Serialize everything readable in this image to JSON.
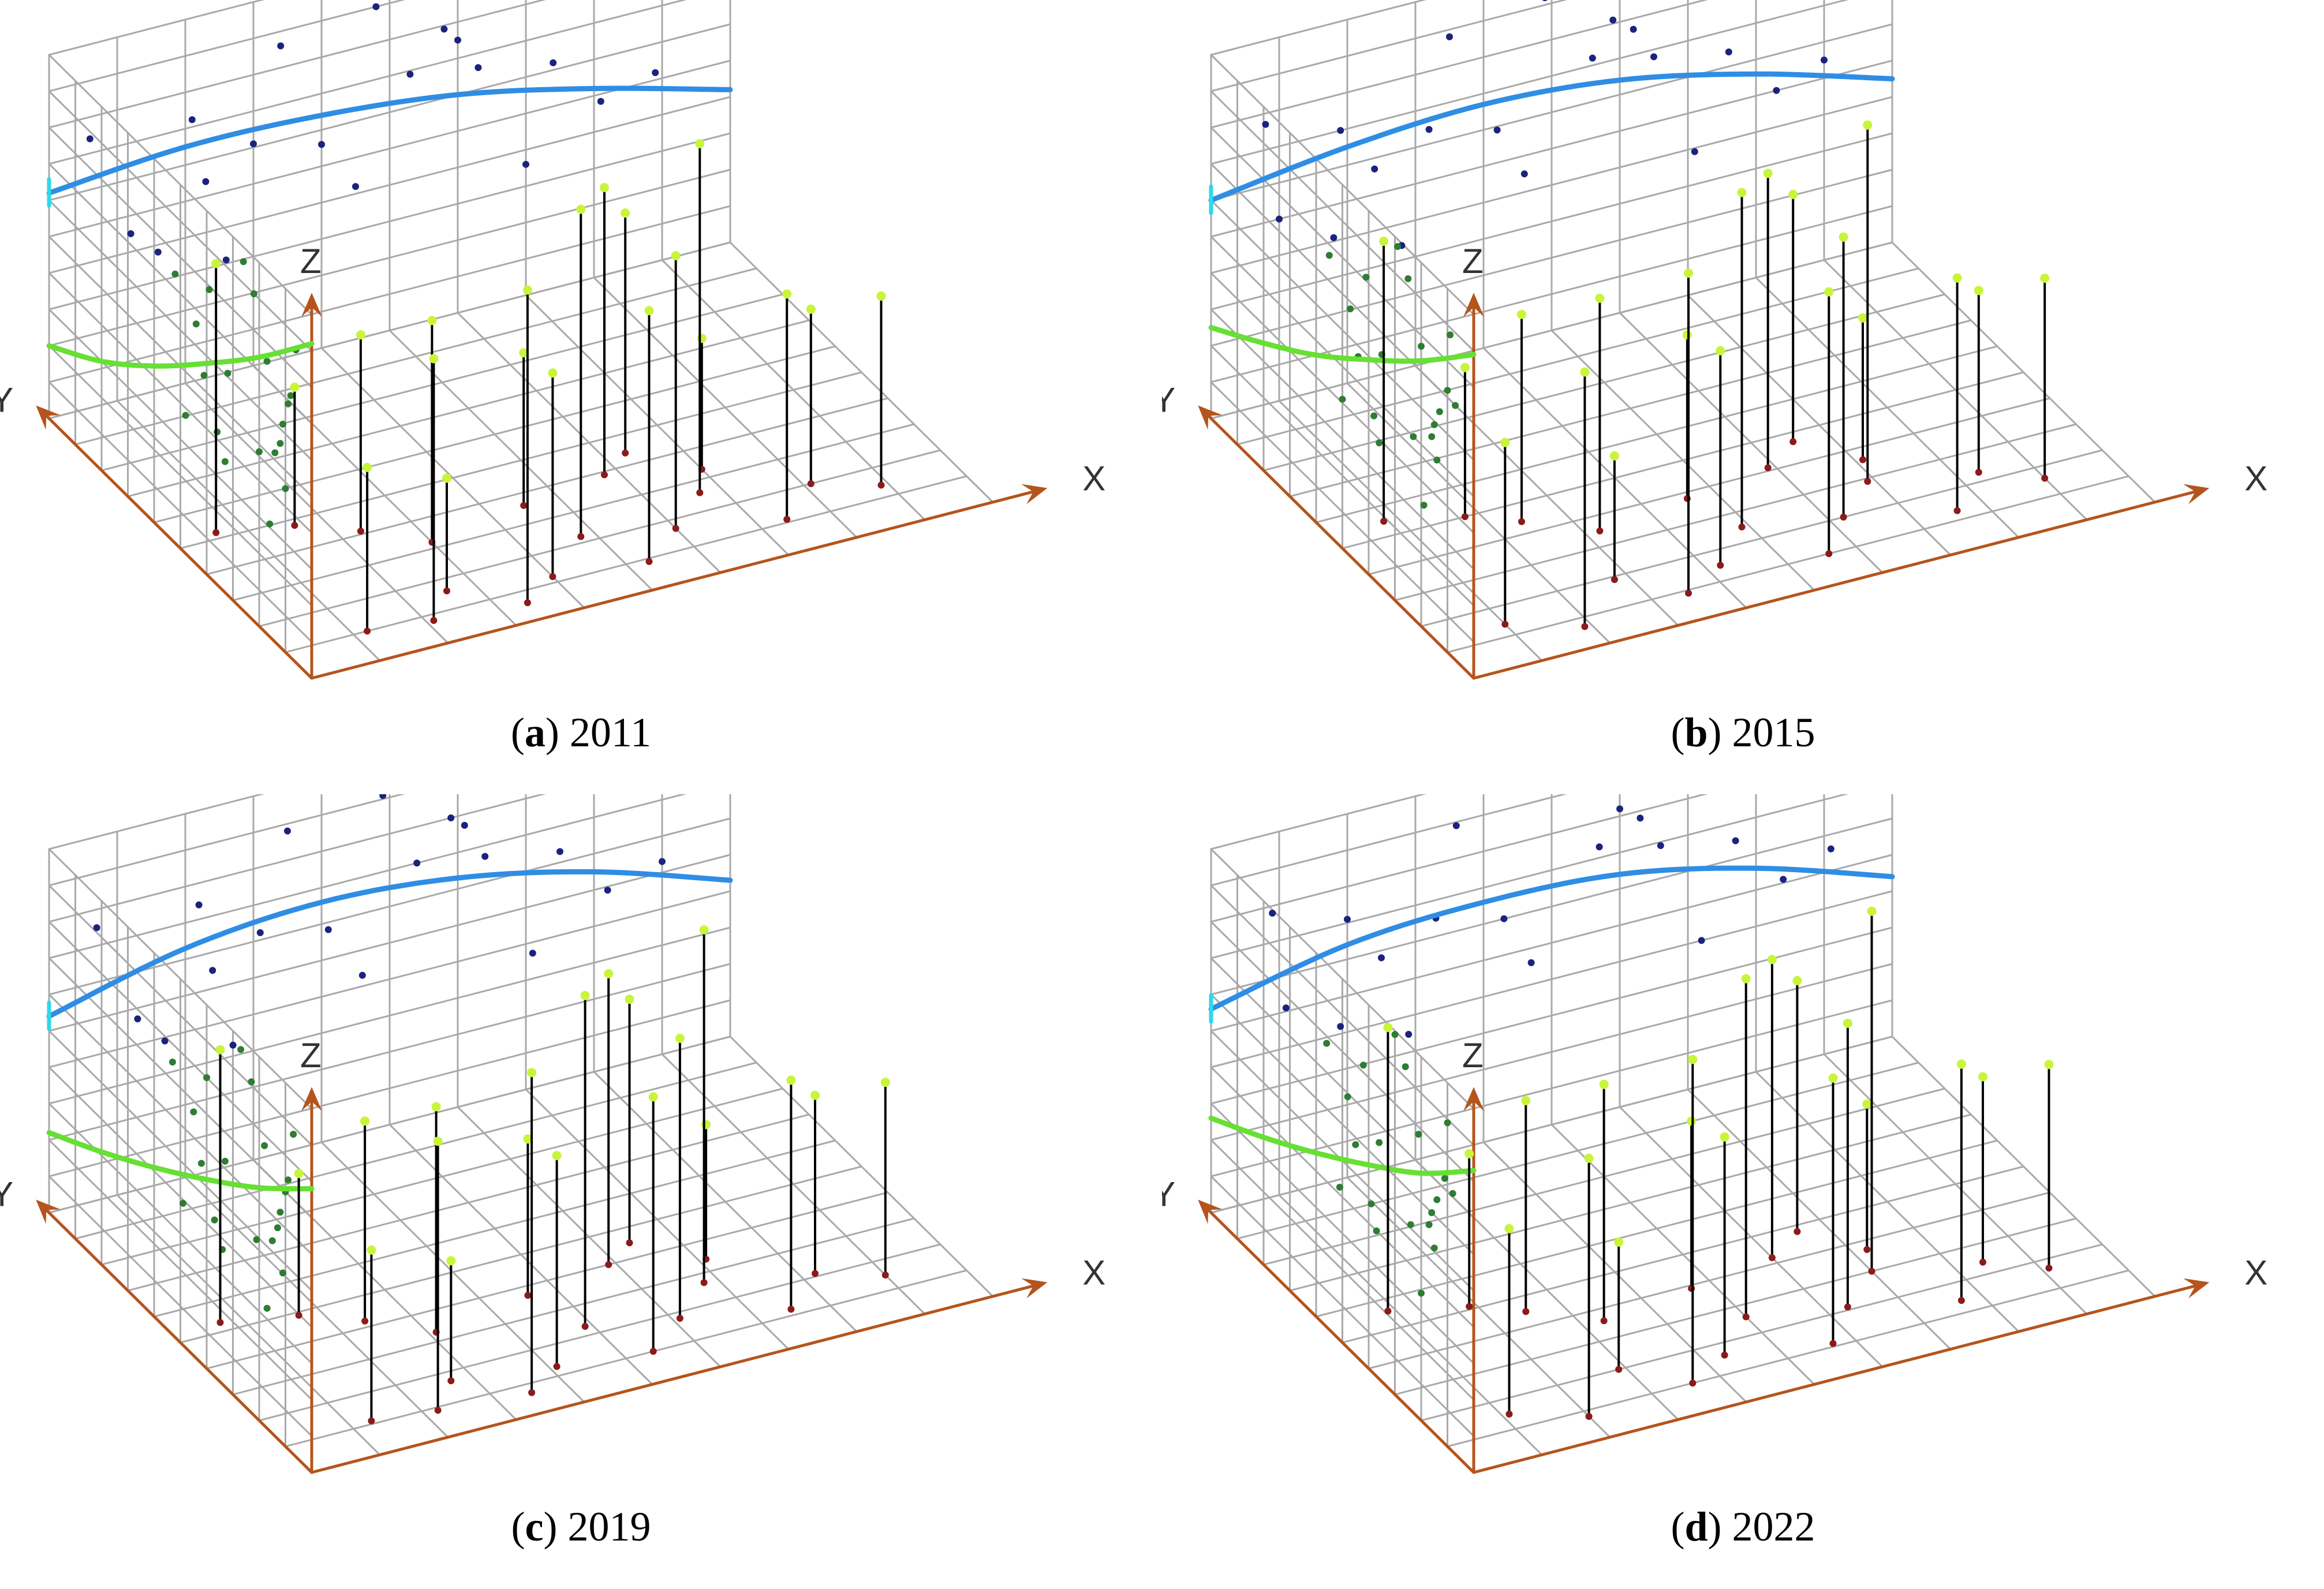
{
  "figure": {
    "panels": [
      {
        "id": "a",
        "letter": "a",
        "year": "2011"
      },
      {
        "id": "b",
        "letter": "b",
        "year": "2015"
      },
      {
        "id": "c",
        "letter": "c",
        "year": "2019"
      },
      {
        "id": "d",
        "letter": "d",
        "year": "2022"
      }
    ],
    "axis_letters": {
      "x": "X",
      "y": "Y",
      "z": "Z"
    }
  },
  "colors": {
    "grid": "#a9a9a9",
    "axis": "#b5541c",
    "projection_xz": "#1a237e",
    "projection_yz": "#2e7d32",
    "data_top": "#c8f53a",
    "data_base": "#8b1a1a",
    "stem": "#000000",
    "trend_yz": "#66e033",
    "trend_xz": "#2f8de4",
    "trend_start": "#2ed8e8"
  },
  "chart_data": [
    {
      "type": "scatter",
      "subtype": "3d-scatter-with-trend-projections",
      "title": "",
      "xlabel": "X",
      "ylabel": "Y",
      "zlabel": "Z",
      "xlim": [
        0,
        10
      ],
      "ylim": [
        0,
        10
      ],
      "zlim": [
        0,
        10
      ],
      "grid": true,
      "caption": "(a) 2011",
      "points": [
        {
          "x": 1.2,
          "y": 1.0,
          "z": 4.5
        },
        {
          "x": 2.1,
          "y": 0.8,
          "z": 7.2
        },
        {
          "x": 2.6,
          "y": 1.6,
          "z": 3.1
        },
        {
          "x": 3.4,
          "y": 0.6,
          "z": 8.6
        },
        {
          "x": 4.0,
          "y": 1.2,
          "z": 5.6
        },
        {
          "x": 4.8,
          "y": 2.2,
          "z": 9.0
        },
        {
          "x": 5.3,
          "y": 0.9,
          "z": 6.9
        },
        {
          "x": 6.0,
          "y": 1.7,
          "z": 7.5
        },
        {
          "x": 6.7,
          "y": 2.6,
          "z": 9.6
        },
        {
          "x": 7.4,
          "y": 1.1,
          "z": 6.2
        },
        {
          "x": 8.1,
          "y": 2.0,
          "z": 4.8
        },
        {
          "x": 8.9,
          "y": 1.4,
          "z": 5.2
        },
        {
          "x": 3.0,
          "y": 3.2,
          "z": 6.1
        },
        {
          "x": 4.5,
          "y": 3.6,
          "z": 4.2
        },
        {
          "x": 5.8,
          "y": 3.9,
          "z": 7.9
        },
        {
          "x": 7.0,
          "y": 3.3,
          "z": 3.6
        },
        {
          "x": 2.3,
          "y": 4.1,
          "z": 5.4
        },
        {
          "x": 6.3,
          "y": 4.4,
          "z": 6.6
        },
        {
          "x": 0.6,
          "y": 5.2,
          "z": 7.4
        },
        {
          "x": 1.6,
          "y": 4.8,
          "z": 3.8
        }
      ],
      "trend_yz": [
        [
          10,
          2.0
        ],
        [
          8,
          3.0
        ],
        [
          6,
          4.3
        ],
        [
          4,
          5.8
        ],
        [
          2,
          7.4
        ],
        [
          0,
          9.2
        ]
      ],
      "trend_xz": [
        [
          0,
          6.2
        ],
        [
          2,
          6.5
        ],
        [
          4,
          6.4
        ],
        [
          6,
          6.0
        ],
        [
          8,
          5.2
        ],
        [
          10,
          4.2
        ]
      ]
    },
    {
      "type": "scatter",
      "subtype": "3d-scatter-with-trend-projections",
      "title": "",
      "xlabel": "X",
      "ylabel": "Y",
      "zlabel": "Z",
      "xlim": [
        0,
        10
      ],
      "ylim": [
        0,
        10
      ],
      "zlim": [
        0,
        10
      ],
      "grid": true,
      "caption": "(b) 2015",
      "points": [
        {
          "x": 1.0,
          "y": 1.4,
          "z": 5.0
        },
        {
          "x": 1.9,
          "y": 0.7,
          "z": 7.0
        },
        {
          "x": 2.8,
          "y": 1.9,
          "z": 3.4
        },
        {
          "x": 3.5,
          "y": 0.9,
          "z": 8.8
        },
        {
          "x": 4.2,
          "y": 1.5,
          "z": 5.9
        },
        {
          "x": 4.9,
          "y": 2.5,
          "z": 9.2
        },
        {
          "x": 5.6,
          "y": 1.0,
          "z": 7.2
        },
        {
          "x": 6.2,
          "y": 2.0,
          "z": 7.7
        },
        {
          "x": 6.9,
          "y": 2.9,
          "z": 9.8
        },
        {
          "x": 7.6,
          "y": 1.3,
          "z": 6.4
        },
        {
          "x": 8.3,
          "y": 2.3,
          "z": 5.0
        },
        {
          "x": 9.0,
          "y": 1.6,
          "z": 5.5
        },
        {
          "x": 3.2,
          "y": 3.5,
          "z": 6.4
        },
        {
          "x": 4.6,
          "y": 3.8,
          "z": 4.5
        },
        {
          "x": 5.9,
          "y": 4.1,
          "z": 8.1
        },
        {
          "x": 7.1,
          "y": 3.6,
          "z": 3.9
        },
        {
          "x": 2.4,
          "y": 4.4,
          "z": 5.7
        },
        {
          "x": 6.5,
          "y": 4.7,
          "z": 6.8
        },
        {
          "x": 0.8,
          "y": 5.5,
          "z": 7.7
        },
        {
          "x": 1.8,
          "y": 5.0,
          "z": 4.1
        }
      ],
      "trend_yz": [
        [
          10,
          2.5
        ],
        [
          8,
          3.5
        ],
        [
          6,
          4.6
        ],
        [
          4,
          5.9
        ],
        [
          2,
          7.3
        ],
        [
          0,
          8.9
        ]
      ],
      "trend_xz": [
        [
          0,
          6.0
        ],
        [
          2,
          6.5
        ],
        [
          4,
          6.7
        ],
        [
          6,
          6.4
        ],
        [
          8,
          5.6
        ],
        [
          10,
          4.5
        ]
      ]
    },
    {
      "type": "scatter",
      "subtype": "3d-scatter-with-trend-projections",
      "title": "",
      "xlabel": "X",
      "ylabel": "Y",
      "zlabel": "Z",
      "xlim": [
        0,
        10
      ],
      "ylim": [
        0,
        10
      ],
      "zlim": [
        0,
        10
      ],
      "grid": true,
      "caption": "(c) 2019",
      "points": [
        {
          "x": 1.3,
          "y": 1.1,
          "z": 4.7
        },
        {
          "x": 2.2,
          "y": 0.9,
          "z": 7.4
        },
        {
          "x": 2.7,
          "y": 1.7,
          "z": 3.3
        },
        {
          "x": 3.5,
          "y": 0.7,
          "z": 8.8
        },
        {
          "x": 4.1,
          "y": 1.3,
          "z": 5.8
        },
        {
          "x": 4.9,
          "y": 2.3,
          "z": 9.1
        },
        {
          "x": 5.4,
          "y": 1.0,
          "z": 7.0
        },
        {
          "x": 6.1,
          "y": 1.8,
          "z": 7.7
        },
        {
          "x": 6.8,
          "y": 2.7,
          "z": 9.7
        },
        {
          "x": 7.5,
          "y": 1.2,
          "z": 6.3
        },
        {
          "x": 8.2,
          "y": 2.1,
          "z": 4.9
        },
        {
          "x": 9.0,
          "y": 1.5,
          "z": 5.3
        },
        {
          "x": 3.1,
          "y": 3.3,
          "z": 6.2
        },
        {
          "x": 4.6,
          "y": 3.7,
          "z": 4.3
        },
        {
          "x": 5.9,
          "y": 4.0,
          "z": 8.0
        },
        {
          "x": 7.1,
          "y": 3.4,
          "z": 3.7
        },
        {
          "x": 2.4,
          "y": 4.2,
          "z": 5.5
        },
        {
          "x": 6.4,
          "y": 4.5,
          "z": 6.7
        },
        {
          "x": 0.7,
          "y": 5.3,
          "z": 7.5
        },
        {
          "x": 1.7,
          "y": 4.9,
          "z": 3.9
        }
      ],
      "trend_yz": [
        [
          10,
          2.2
        ],
        [
          8,
          3.1
        ],
        [
          6,
          4.1
        ],
        [
          4,
          5.2
        ],
        [
          2,
          6.4
        ],
        [
          0,
          7.8
        ]
      ],
      "trend_xz": [
        [
          0,
          5.4
        ],
        [
          2,
          6.3
        ],
        [
          4,
          6.6
        ],
        [
          6,
          6.3
        ],
        [
          8,
          5.5
        ],
        [
          10,
          4.3
        ]
      ]
    },
    {
      "type": "scatter",
      "subtype": "3d-scatter-with-trend-projections",
      "title": "",
      "xlabel": "X",
      "ylabel": "Y",
      "zlabel": "Z",
      "xlim": [
        0,
        10
      ],
      "ylim": [
        0,
        10
      ],
      "zlim": [
        0,
        10
      ],
      "grid": true,
      "caption": "(d) 2022",
      "points": [
        {
          "x": 1.1,
          "y": 1.5,
          "z": 5.1
        },
        {
          "x": 2.0,
          "y": 0.8,
          "z": 7.1
        },
        {
          "x": 2.9,
          "y": 2.0,
          "z": 3.5
        },
        {
          "x": 3.6,
          "y": 1.0,
          "z": 8.9
        },
        {
          "x": 4.3,
          "y": 1.6,
          "z": 6.0
        },
        {
          "x": 5.0,
          "y": 2.6,
          "z": 9.3
        },
        {
          "x": 5.7,
          "y": 1.1,
          "z": 7.3
        },
        {
          "x": 6.3,
          "y": 2.1,
          "z": 7.8
        },
        {
          "x": 7.0,
          "y": 3.0,
          "z": 9.9
        },
        {
          "x": 7.7,
          "y": 1.4,
          "z": 6.5
        },
        {
          "x": 8.4,
          "y": 2.4,
          "z": 5.1
        },
        {
          "x": 9.1,
          "y": 1.7,
          "z": 5.6
        },
        {
          "x": 3.3,
          "y": 3.6,
          "z": 6.5
        },
        {
          "x": 4.7,
          "y": 3.9,
          "z": 4.6
        },
        {
          "x": 6.0,
          "y": 4.2,
          "z": 8.2
        },
        {
          "x": 7.2,
          "y": 3.7,
          "z": 4.0
        },
        {
          "x": 2.5,
          "y": 4.5,
          "z": 5.8
        },
        {
          "x": 6.6,
          "y": 4.8,
          "z": 6.9
        },
        {
          "x": 0.9,
          "y": 5.6,
          "z": 7.8
        },
        {
          "x": 1.9,
          "y": 5.1,
          "z": 4.2
        }
      ],
      "trend_yz": [
        [
          10,
          2.6
        ],
        [
          8,
          3.5
        ],
        [
          6,
          4.5
        ],
        [
          4,
          5.6
        ],
        [
          2,
          6.8
        ],
        [
          0,
          8.3
        ]
      ],
      "trend_xz": [
        [
          0,
          5.6
        ],
        [
          2,
          6.4
        ],
        [
          4,
          6.6
        ],
        [
          6,
          6.4
        ],
        [
          8,
          5.6
        ],
        [
          10,
          4.4
        ]
      ]
    }
  ]
}
